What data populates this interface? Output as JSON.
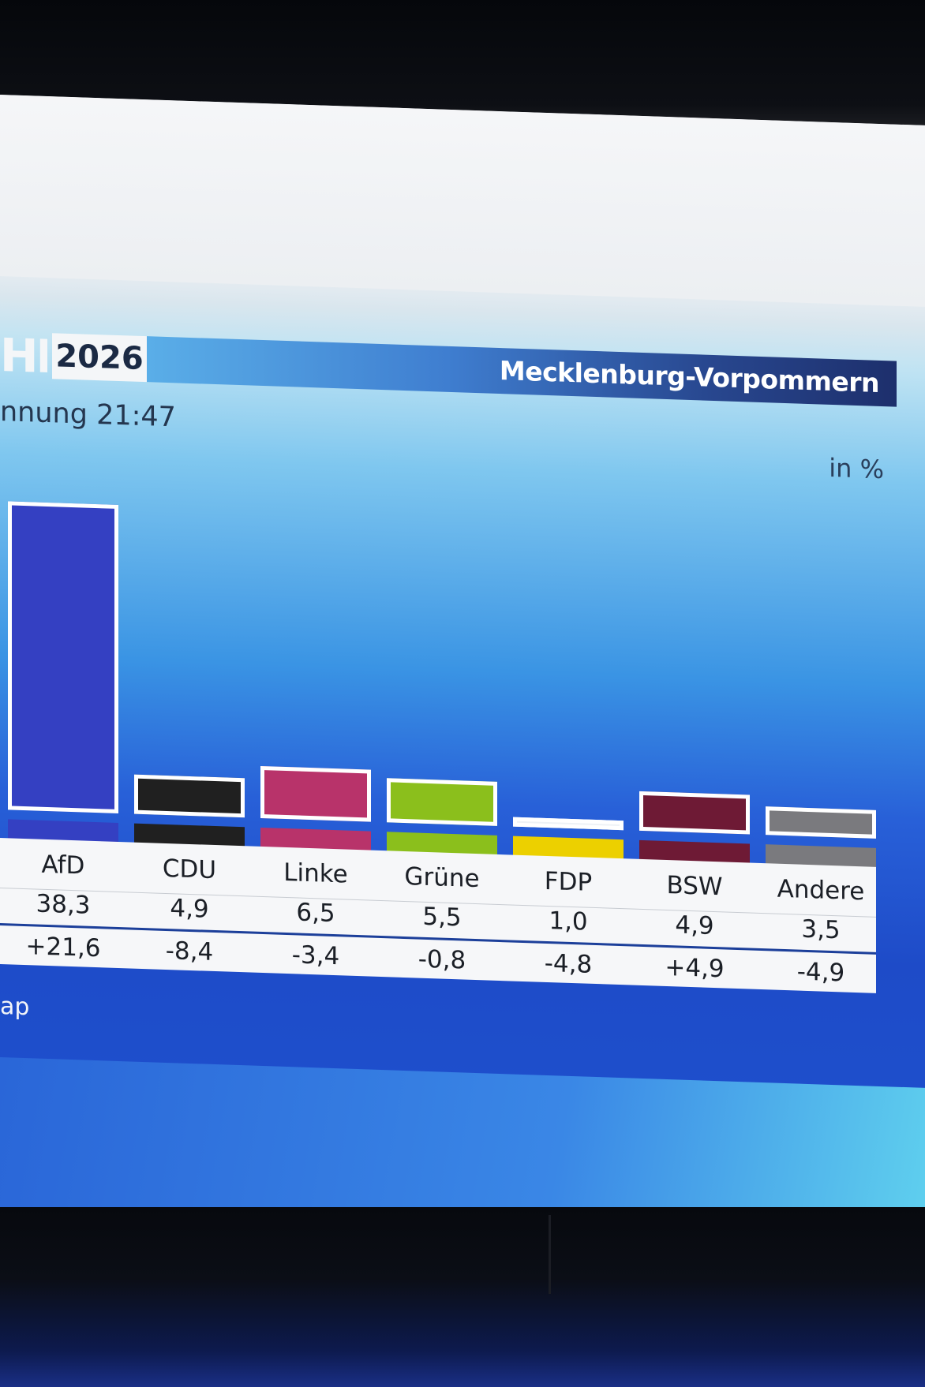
{
  "header": {
    "partial_title": "HL",
    "year": "2026",
    "region": "Mecklenburg-Vorpommern",
    "subtitle": "nnung 21:47",
    "unit": "in %"
  },
  "footer": {
    "source": "ap"
  },
  "chart_data": {
    "type": "bar",
    "categories": [
      "AfD",
      "CDU",
      "Linke",
      "Grüne",
      "FDP",
      "BSW",
      "Andere"
    ],
    "values": [
      38.3,
      4.9,
      6.5,
      5.5,
      1.0,
      4.9,
      3.5
    ],
    "value_labels": [
      "38,3",
      "4,9",
      "6,5",
      "5,5",
      "1,0",
      "4,9",
      "3,5"
    ],
    "change_labels": [
      "+21,6",
      "-8,4",
      "-3,4",
      "-0,8",
      "-4,8",
      "+4,9",
      "-4,9"
    ],
    "changes": [
      21.6,
      -8.4,
      -3.4,
      -0.8,
      -4.8,
      4.9,
      -4.9
    ],
    "colors": [
      "#3440c2",
      "#202020",
      "#b8336a",
      "#8bbf1c",
      "#ecd000",
      "#6e1a35",
      "#7a7a7e"
    ],
    "ylabel": "in %",
    "legend": "none",
    "grid": false
  }
}
